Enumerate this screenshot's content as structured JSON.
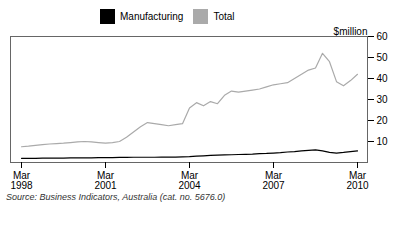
{
  "chart_data": {
    "type": "line",
    "caption": "Source: Business Indicators, Australia (cat. no. 5676.0)",
    "ylabel": "$million",
    "categories": [
      "Mar\n1998",
      null,
      null,
      null,
      null,
      null,
      null,
      null,
      null,
      null,
      null,
      null,
      "Mar\n2001",
      null,
      null,
      null,
      null,
      null,
      null,
      null,
      null,
      null,
      null,
      null,
      "Mar\n2004",
      null,
      null,
      null,
      null,
      null,
      null,
      null,
      null,
      null,
      null,
      null,
      "Mar\n2007",
      null,
      null,
      null,
      null,
      null,
      null,
      null,
      null,
      null,
      null,
      null,
      "Mar\n2010"
    ],
    "series": [
      {
        "name": "Manufacturing",
        "color": "#000000",
        "values": [
          2.0,
          2.0,
          2.0,
          2.1,
          2.1,
          2.1,
          2.1,
          2.2,
          2.2,
          2.2,
          2.2,
          2.3,
          2.3,
          2.3,
          2.4,
          2.4,
          2.5,
          2.5,
          2.5,
          2.5,
          2.6,
          2.6,
          2.6,
          2.7,
          2.8,
          3.0,
          3.2,
          3.4,
          3.5,
          3.6,
          3.7,
          3.8,
          3.9,
          4.0,
          4.2,
          4.3,
          4.5,
          4.7,
          5.0,
          5.2,
          5.5,
          5.8,
          6.0,
          5.5,
          4.8,
          4.5,
          4.8,
          5.2,
          5.5
        ]
      },
      {
        "name": "Total",
        "color": "#aaaaaa",
        "values": [
          7.5,
          7.8,
          8.2,
          8.5,
          8.8,
          9.0,
          9.2,
          9.5,
          9.8,
          10.0,
          9.8,
          9.5,
          9.2,
          9.5,
          10.0,
          12.0,
          14.5,
          17.0,
          19.0,
          18.5,
          18.0,
          17.5,
          18.0,
          18.5,
          26.0,
          28.5,
          27.0,
          29.0,
          28.0,
          32.0,
          34.0,
          33.5,
          34.0,
          34.5,
          35.0,
          36.0,
          37.0,
          37.5,
          38.0,
          40.0,
          42.0,
          44.0,
          45.0,
          52.0,
          48.0,
          38.5,
          36.5,
          39.0,
          42.0
        ]
      }
    ],
    "ylim": [
      0,
      60
    ],
    "yticks": [
      10,
      20,
      30,
      40,
      50,
      60
    ],
    "grid": false,
    "legend": "top"
  }
}
